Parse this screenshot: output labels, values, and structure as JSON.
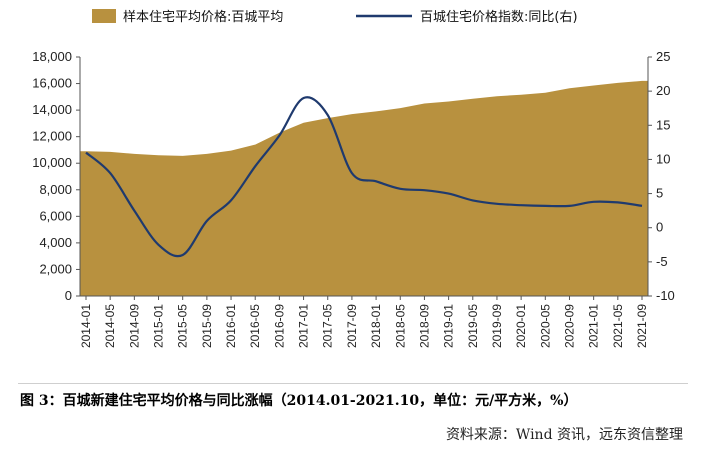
{
  "chart_data": {
    "type": "area+line",
    "legend": {
      "placement": "top",
      "entries": [
        "样本住宅平均价格:百城平均",
        "百城住宅价格指数:同比(右)"
      ]
    },
    "categories": [
      "2014-01",
      "2014-05",
      "2014-09",
      "2015-01",
      "2015-05",
      "2015-09",
      "2016-01",
      "2016-05",
      "2016-09",
      "2017-01",
      "2017-05",
      "2017-09",
      "2018-01",
      "2018-05",
      "2018-09",
      "2019-01",
      "2019-05",
      "2019-09",
      "2020-01",
      "2020-05",
      "2020-09",
      "2021-01",
      "2021-05",
      "2021-09"
    ],
    "series": [
      {
        "name": "样本住宅平均价格:百城平均",
        "type": "area",
        "axis": "left",
        "color": "#B8913F",
        "values": [
          10900,
          10850,
          10700,
          10600,
          10550,
          10700,
          10950,
          11400,
          12300,
          13050,
          13400,
          13700,
          13900,
          14150,
          14500,
          14650,
          14850,
          15050,
          15150,
          15300,
          15650,
          15850,
          16050,
          16200
        ]
      },
      {
        "name": "百城住宅价格指数:同比(右)",
        "type": "line",
        "axis": "right",
        "color": "#1F3A6E",
        "values": [
          11,
          8,
          2.5,
          -2.5,
          -4,
          1,
          4,
          9,
          13.5,
          19,
          16.5,
          8,
          6.8,
          5.7,
          5.5,
          5,
          4,
          3.5,
          3.3,
          3.2,
          3.2,
          3.8,
          3.7,
          3.2
        ]
      }
    ],
    "yleft": {
      "range": [
        0,
        18000
      ],
      "ticks": [
        "0",
        "2,000",
        "4,000",
        "6,000",
        "8,000",
        "10,000",
        "12,000",
        "14,000",
        "16,000",
        "18,000"
      ]
    },
    "yright": {
      "range": [
        -10,
        25
      ],
      "ticks": [
        "-10",
        "-5",
        "0",
        "5",
        "10",
        "15",
        "20",
        "25"
      ]
    },
    "grid": false,
    "caption": "图 3：百城新建住宅平均价格与同比涨幅（2014.01-2021.10，单位：元/平方米，%）",
    "source": "资料来源：Wind 资讯，远东资信整理"
  }
}
